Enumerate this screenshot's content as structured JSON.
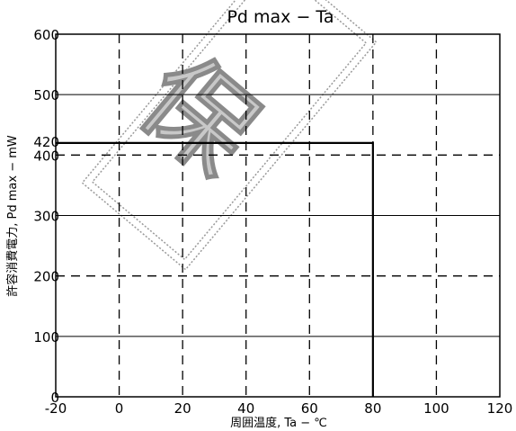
{
  "chart_data": {
    "type": "line",
    "title": "Pd max − Ta",
    "xlabel": "周囲温度, Ta − ℃",
    "ylabel": "許容消費電力, Pd max − mW",
    "xlim": [
      -20,
      120
    ],
    "ylim": [
      0,
      600
    ],
    "x_ticks": [
      "-20",
      "0",
      "20",
      "40",
      "60",
      "80",
      "100",
      "120"
    ],
    "y_ticks": [
      "0",
      "100",
      "200",
      "300",
      "400",
      "500",
      "600"
    ],
    "extra_y_ticks": [
      {
        "value": 420,
        "label": "420"
      }
    ],
    "grid": true,
    "series": [
      {
        "x": [
          -20,
          80,
          80
        ],
        "y": [
          420,
          420,
          0
        ]
      }
    ],
    "colors": {
      "line": "#000000",
      "grid": "#000000",
      "stamp": "#9a9a9a"
    }
  },
  "stamp": {
    "text": "保"
  }
}
